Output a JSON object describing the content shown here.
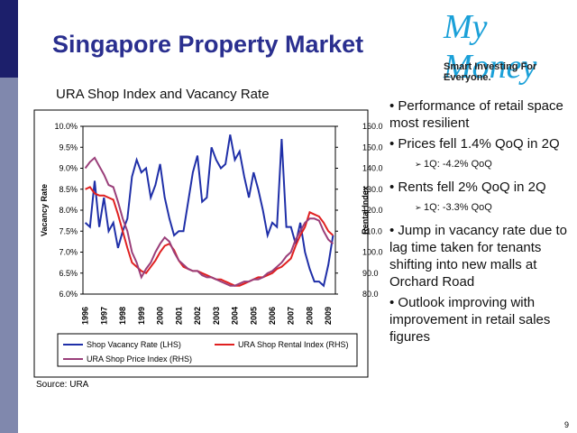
{
  "slide_title": "Singapore Property Market",
  "logo": {
    "name": "My Money",
    "tagline": "Smart Investing For Everyone."
  },
  "bullets": [
    {
      "text": "Performance of retail space most resilient"
    },
    {
      "text": "Prices fell 1.4% QoQ in 2Q",
      "sub": "1Q: -4.2% QoQ"
    },
    {
      "text": "Rents fell 2% QoQ in 2Q",
      "sub": "1Q: -3.3% QoQ"
    },
    {
      "text": "Jump in vacancy rate due to lag time taken for tenants shifting into new malls at Orchard Road"
    },
    {
      "text": "Outlook improving with improvement in retail sales figures"
    }
  ],
  "source": "Source: URA",
  "page_number": "9",
  "chart_data": {
    "type": "line",
    "title": "URA Shop Index and Vacancy Rate",
    "y_label": "Vacancy Rate",
    "y2_label": "Rental Index",
    "categories": [
      "1996",
      null,
      null,
      null,
      "1997",
      null,
      null,
      null,
      "1998",
      null,
      null,
      null,
      "1999",
      null,
      null,
      null,
      "2000",
      null,
      null,
      null,
      "2001",
      null,
      null,
      null,
      "2002",
      null,
      null,
      null,
      "2003",
      null,
      null,
      null,
      "2004",
      null,
      null,
      null,
      "2005",
      null,
      null,
      null,
      "2006",
      null,
      null,
      null,
      "2007",
      null,
      null,
      null,
      "2008",
      null,
      null,
      null,
      "2009",
      null
    ],
    "series": [
      {
        "name": "Shop Vacancy Rate (LHS)",
        "color": "#1f2fa8",
        "axis": "y",
        "values": [
          7.7,
          7.6,
          8.7,
          7.6,
          8.3,
          7.5,
          7.7,
          7.1,
          7.5,
          7.8,
          8.8,
          9.2,
          8.9,
          9.0,
          8.3,
          8.6,
          9.1,
          8.3,
          7.8,
          7.4,
          7.5,
          7.5,
          8.2,
          8.9,
          9.3,
          8.2,
          8.3,
          9.5,
          9.2,
          9.0,
          9.1,
          9.8,
          9.2,
          9.4,
          8.8,
          8.3,
          8.9,
          8.5,
          8.0,
          7.4,
          7.7,
          7.6,
          9.7,
          7.6,
          7.6,
          7.2,
          7.7,
          7.0,
          6.6,
          6.3,
          6.3,
          6.2,
          6.7,
          7.4
        ]
      },
      {
        "name": "URA Shop Rental Index (RHS)",
        "color": "#e02020",
        "axis": "y2",
        "values": [
          130,
          131,
          128,
          127,
          127,
          126,
          125,
          118,
          110,
          102,
          95,
          93,
          91,
          90,
          93,
          96,
          100,
          103,
          104,
          101,
          96,
          93,
          92,
          91,
          91,
          90,
          89,
          88,
          87,
          87,
          86,
          85,
          84,
          84,
          85,
          86,
          87,
          88,
          88,
          89,
          90,
          92,
          93,
          95,
          97,
          103,
          108,
          112,
          119,
          118,
          117,
          114,
          110,
          108
        ]
      },
      {
        "name": "URA Shop Price Index (RHS)",
        "color": "#9a3f7a",
        "axis": "y2",
        "values": [
          140,
          143,
          145,
          141,
          137,
          132,
          131,
          124,
          116,
          110,
          100,
          95,
          88,
          92,
          95,
          100,
          104,
          107,
          105,
          100,
          96,
          94,
          92,
          91,
          91,
          89,
          88,
          88,
          87,
          86,
          85,
          84,
          84,
          85,
          86,
          86,
          87,
          87,
          88,
          90,
          91,
          93,
          95,
          98,
          100,
          106,
          110,
          114,
          116,
          116,
          115,
          110,
          106,
          104
        ]
      }
    ],
    "ylim": [
      6,
      10
    ],
    "yticks": [
      {
        "value": 6,
        "label": "6.0%"
      },
      {
        "value": 6.5,
        "label": "6.5%"
      },
      {
        "value": 7,
        "label": "7.0%"
      },
      {
        "value": 7.5,
        "label": "7.5%"
      },
      {
        "value": 8,
        "label": "8.0%"
      },
      {
        "value": 8.5,
        "label": "8.5%"
      },
      {
        "value": 9,
        "label": "9.0%"
      },
      {
        "value": 9.5,
        "label": "9.5%"
      },
      {
        "value": 10,
        "label": "10.0%"
      }
    ],
    "y2lim": [
      80,
      160
    ],
    "y2ticks": [
      {
        "value": 80,
        "label": "80.0"
      },
      {
        "value": 90,
        "label": "90.0"
      },
      {
        "value": 100,
        "label": "100.0"
      },
      {
        "value": 110,
        "label": "110.0"
      },
      {
        "value": 120,
        "label": "120.0"
      },
      {
        "value": 130,
        "label": "130.0"
      },
      {
        "value": 140,
        "label": "140.0"
      },
      {
        "value": 150,
        "label": "150.0"
      },
      {
        "value": 160,
        "label": "160.0"
      }
    ],
    "legend": "bottom"
  }
}
